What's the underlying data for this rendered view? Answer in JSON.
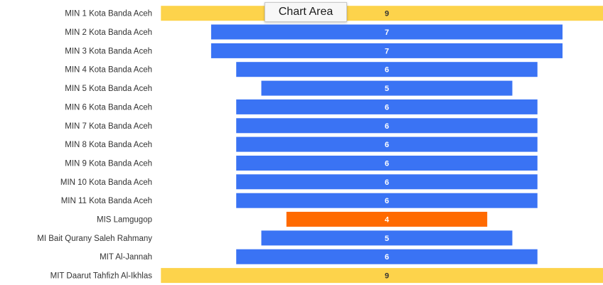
{
  "tooltip": {
    "text": "Chart Area"
  },
  "colors": {
    "blue": "#3a73f4",
    "orange": "#ff6a00",
    "yellow": "#fdd34b"
  },
  "chart_data": {
    "type": "bar",
    "orientation": "horizontal",
    "layout": "funnel",
    "categories": [
      "MIN 1 Kota Banda Aceh",
      "MIN 2 Kota Banda Aceh",
      "MIN 3 Kota Banda Aceh",
      "MIN 4 Kota Banda Aceh",
      "MIN 5 Kota Banda Aceh",
      "MIN 6 Kota Banda Aceh",
      "MIN 7 Kota Banda Aceh",
      "MIN 8 Kota Banda Aceh",
      "MIN 9 Kota Banda Aceh",
      "MIN 10 Kota Banda Aceh",
      "MIN 11 Kota Banda Aceh",
      "MIS Lamgugop",
      "MI Bait Qurany Saleh Rahmany",
      "MIT Al-Jannah",
      "MIT Daarut Tahfizh Al-Ikhlas"
    ],
    "values": [
      9,
      7,
      7,
      6,
      5,
      6,
      6,
      6,
      6,
      6,
      6,
      4,
      5,
      6,
      9
    ],
    "bar_colors": [
      "yellow",
      "blue",
      "blue",
      "blue",
      "blue",
      "blue",
      "blue",
      "blue",
      "blue",
      "blue",
      "blue",
      "orange",
      "blue",
      "blue",
      "yellow"
    ],
    "data_labels": [
      "9",
      "7",
      "7",
      "6",
      "5",
      "6",
      "6",
      "6",
      "6",
      "6",
      "6",
      "4",
      "5",
      "6",
      "9"
    ],
    "title": "",
    "xlabel": "",
    "ylabel": "",
    "xlim": [
      0,
      9
    ],
    "grid": false,
    "legend": "none"
  }
}
